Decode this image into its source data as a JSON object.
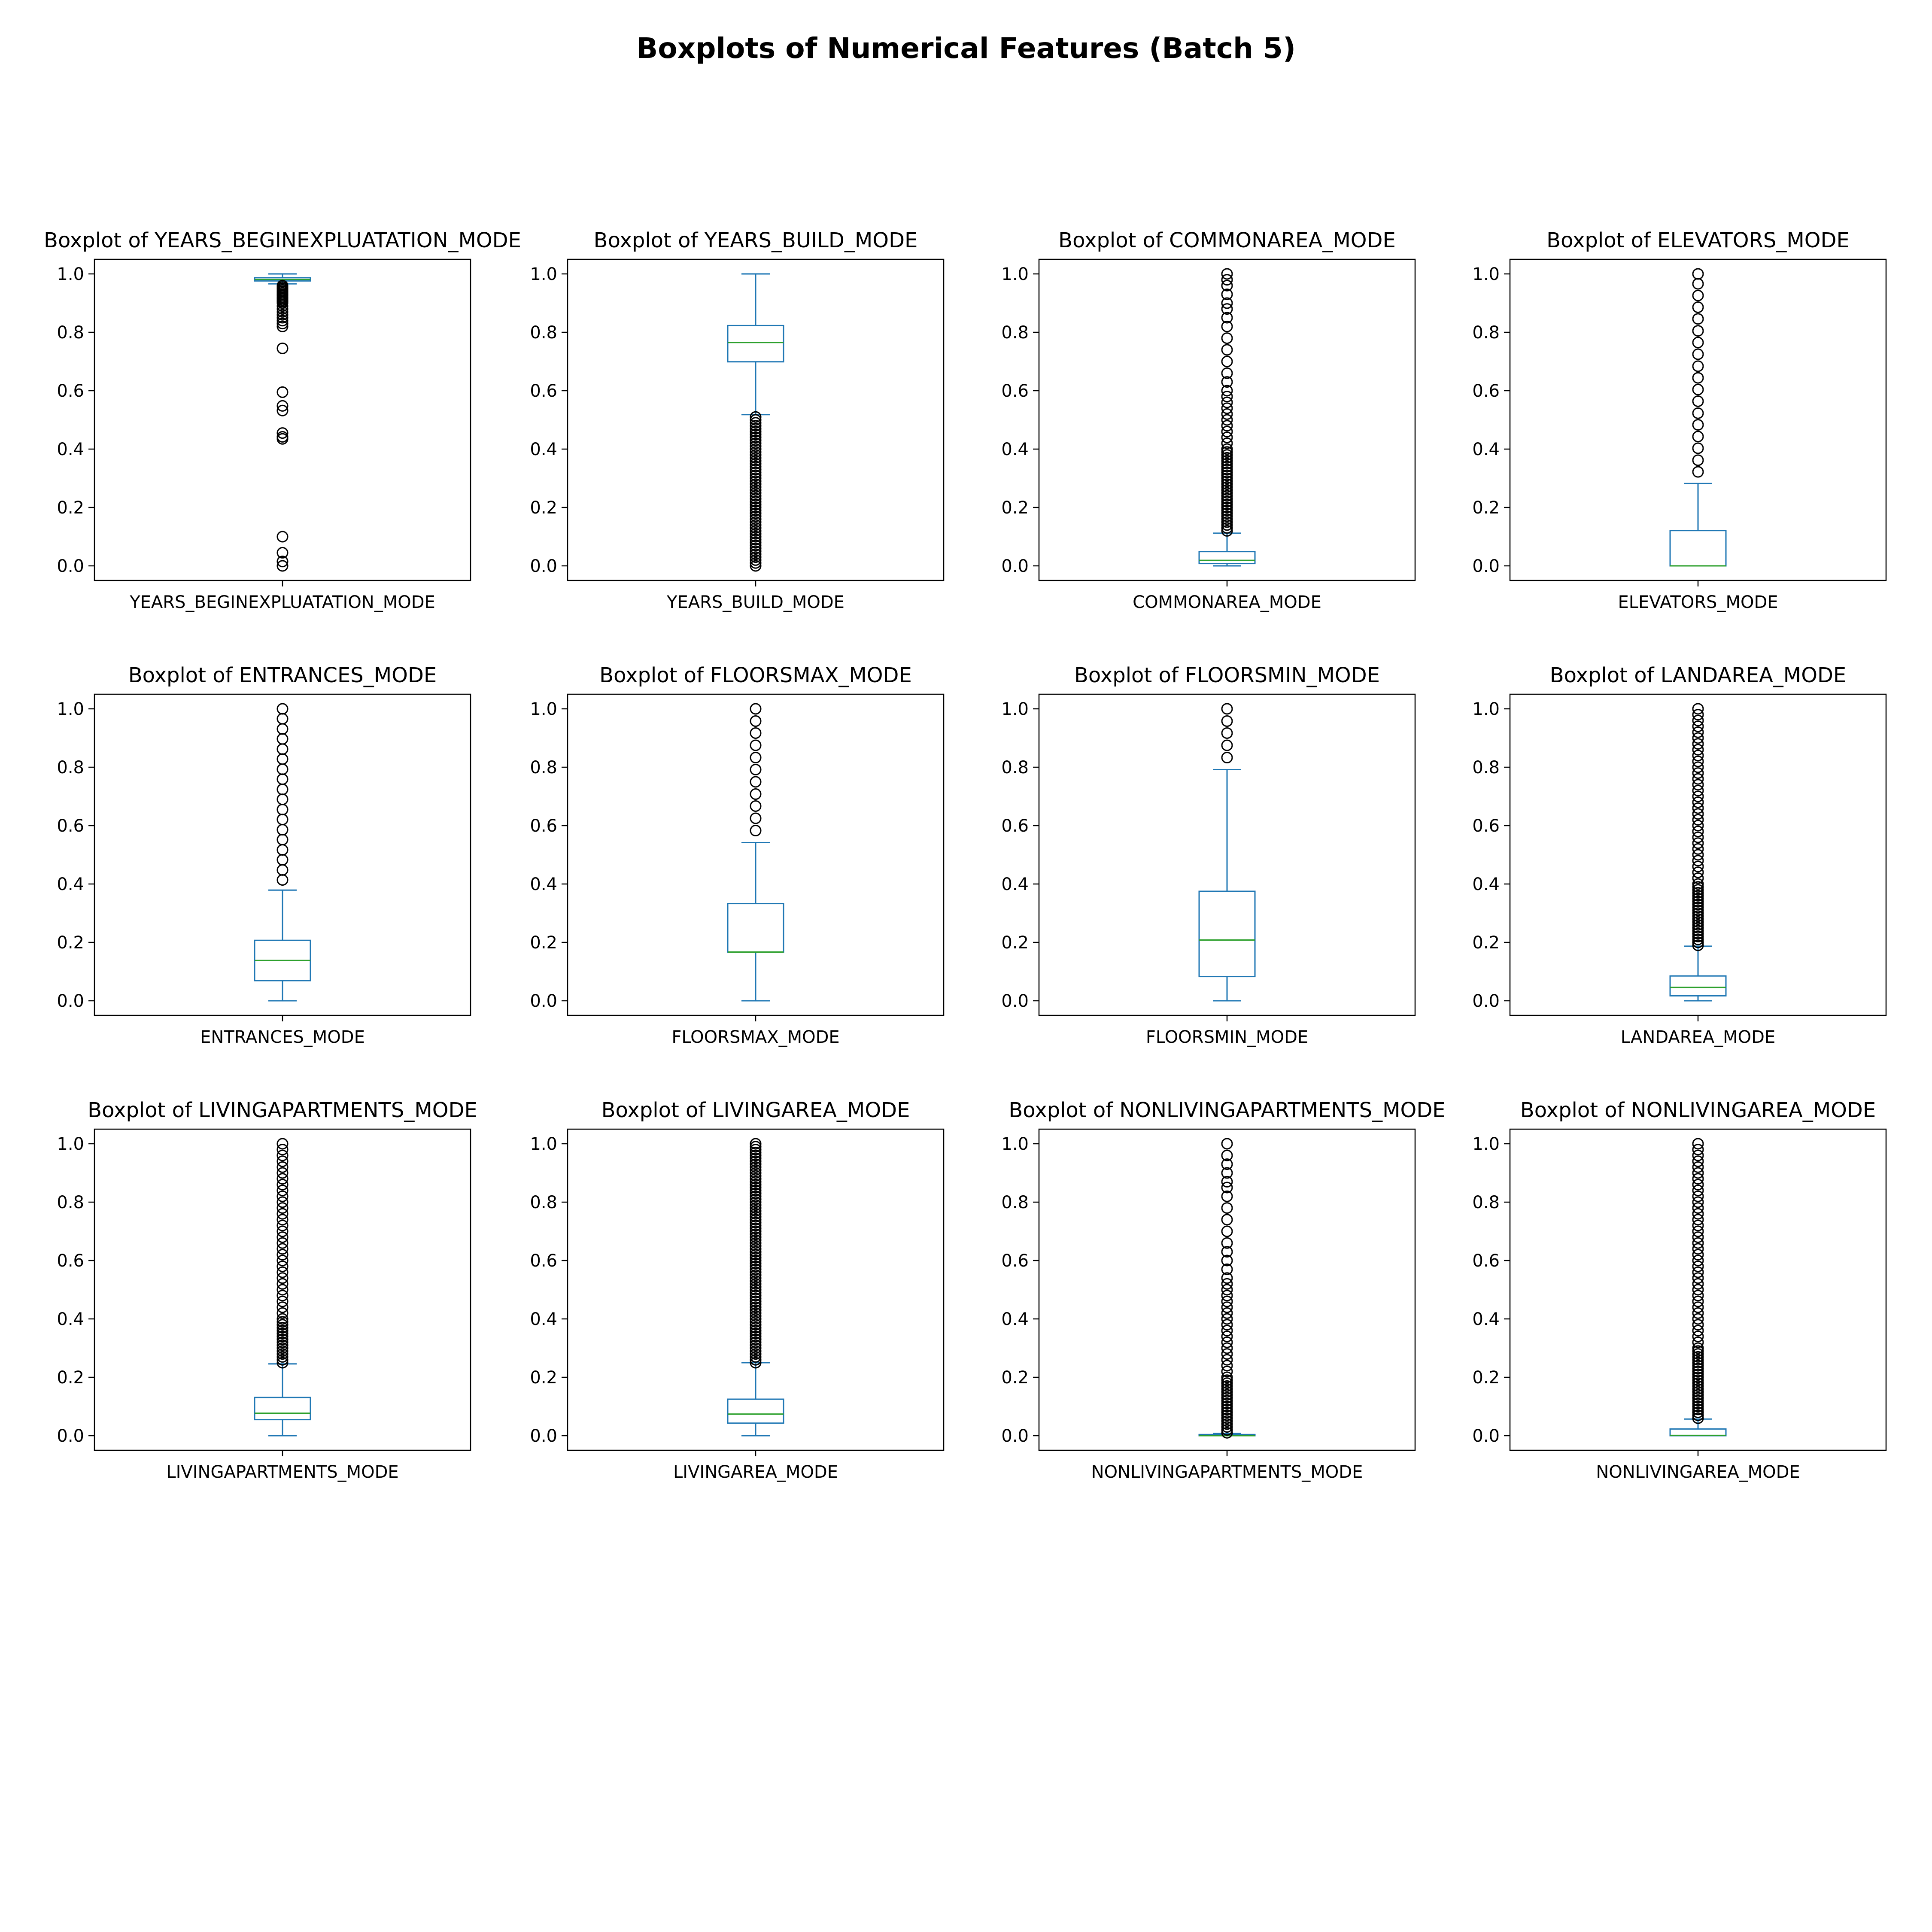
{
  "figure": {
    "title": "Boxplots of Numerical Features (Batch 5)"
  },
  "colors": {
    "box": "#1f77b4",
    "median": "#2ca02c",
    "flier_edge": "#000000",
    "axes": "#000000",
    "background": "#ffffff"
  },
  "chart_data": [
    {
      "type": "boxplot",
      "title": "Boxplot of YEARS_BEGINEXPLUATATION_MODE",
      "category": "YEARS_BEGINEXPLUATATION_MODE",
      "ylim": [
        -0.05,
        1.05
      ],
      "yticks": [
        0.0,
        0.2,
        0.4,
        0.6,
        0.8,
        1.0
      ],
      "whisker_low": 0.966,
      "q1": 0.976,
      "median": 0.981,
      "q3": 0.987,
      "whisker_high": 1.0,
      "outliers": [
        0.96,
        0.955,
        0.95,
        0.945,
        0.94,
        0.935,
        0.93,
        0.925,
        0.92,
        0.915,
        0.91,
        0.905,
        0.9,
        0.89,
        0.88,
        0.87,
        0.86,
        0.85,
        0.84,
        0.83,
        0.82,
        0.745,
        0.595,
        0.548,
        0.532,
        0.455,
        0.442,
        0.435,
        0.1,
        0.045,
        0.015,
        0.0
      ]
    },
    {
      "type": "boxplot",
      "title": "Boxplot of YEARS_BUILD_MODE",
      "category": "YEARS_BUILD_MODE",
      "ylim": [
        -0.05,
        1.05
      ],
      "yticks": [
        0.0,
        0.2,
        0.4,
        0.6,
        0.8,
        1.0
      ],
      "whisker_low": 0.518,
      "q1": 0.699,
      "median": 0.765,
      "q3": 0.823,
      "whisker_high": 1.0,
      "outliers": [
        0.51,
        0.5,
        0.49,
        0.48,
        0.47,
        0.46,
        0.45,
        0.44,
        0.43,
        0.42,
        0.41,
        0.4,
        0.39,
        0.38,
        0.37,
        0.36,
        0.35,
        0.34,
        0.33,
        0.32,
        0.31,
        0.3,
        0.29,
        0.28,
        0.27,
        0.26,
        0.25,
        0.24,
        0.23,
        0.22,
        0.21,
        0.2,
        0.19,
        0.18,
        0.17,
        0.16,
        0.15,
        0.14,
        0.13,
        0.12,
        0.11,
        0.1,
        0.09,
        0.08,
        0.07,
        0.06,
        0.05,
        0.04,
        0.03,
        0.02,
        0.01,
        0.0
      ]
    },
    {
      "type": "boxplot",
      "title": "Boxplot of COMMONAREA_MODE",
      "category": "COMMONAREA_MODE",
      "ylim": [
        -0.05,
        1.05
      ],
      "yticks": [
        0.0,
        0.2,
        0.4,
        0.6,
        0.8,
        1.0
      ],
      "whisker_low": 0.0,
      "q1": 0.008,
      "median": 0.019,
      "q3": 0.049,
      "whisker_high": 0.112,
      "outliers": [
        0.12,
        0.13,
        0.14,
        0.15,
        0.16,
        0.17,
        0.18,
        0.19,
        0.2,
        0.21,
        0.22,
        0.23,
        0.24,
        0.25,
        0.26,
        0.27,
        0.28,
        0.29,
        0.3,
        0.31,
        0.32,
        0.33,
        0.34,
        0.35,
        0.36,
        0.37,
        0.38,
        0.39,
        0.4,
        0.42,
        0.44,
        0.46,
        0.48,
        0.5,
        0.52,
        0.54,
        0.56,
        0.58,
        0.6,
        0.63,
        0.66,
        0.7,
        0.74,
        0.78,
        0.82,
        0.85,
        0.88,
        0.9,
        0.93,
        0.96,
        0.98,
        1.0
      ]
    },
    {
      "type": "boxplot",
      "title": "Boxplot of ELEVATORS_MODE",
      "category": "ELEVATORS_MODE",
      "ylim": [
        -0.05,
        1.05
      ],
      "yticks": [
        0.0,
        0.2,
        0.4,
        0.6,
        0.8,
        1.0
      ],
      "whisker_low": 0.0,
      "q1": 0.0,
      "median": 0.0,
      "q3": 0.121,
      "whisker_high": 0.282,
      "outliers": [
        0.322,
        0.362,
        0.403,
        0.443,
        0.483,
        0.523,
        0.564,
        0.604,
        0.644,
        0.684,
        0.725,
        0.765,
        0.805,
        0.846,
        0.886,
        0.926,
        0.966,
        1.0
      ]
    },
    {
      "type": "boxplot",
      "title": "Boxplot of ENTRANCES_MODE",
      "category": "ENTRANCES_MODE",
      "ylim": [
        -0.05,
        1.05
      ],
      "yticks": [
        0.0,
        0.2,
        0.4,
        0.6,
        0.8,
        1.0
      ],
      "whisker_low": 0.0,
      "q1": 0.069,
      "median": 0.138,
      "q3": 0.207,
      "whisker_high": 0.379,
      "outliers": [
        0.414,
        0.448,
        0.483,
        0.517,
        0.552,
        0.586,
        0.621,
        0.655,
        0.69,
        0.724,
        0.759,
        0.793,
        0.828,
        0.862,
        0.897,
        0.931,
        0.966,
        1.0
      ]
    },
    {
      "type": "boxplot",
      "title": "Boxplot of FLOORSMAX_MODE",
      "category": "FLOORSMAX_MODE",
      "ylim": [
        -0.05,
        1.05
      ],
      "yticks": [
        0.0,
        0.2,
        0.4,
        0.6,
        0.8,
        1.0
      ],
      "whisker_low": 0.0,
      "q1": 0.167,
      "median": 0.167,
      "q3": 0.333,
      "whisker_high": 0.542,
      "outliers": [
        0.583,
        0.625,
        0.667,
        0.708,
        0.75,
        0.792,
        0.833,
        0.875,
        0.917,
        0.958,
        1.0
      ]
    },
    {
      "type": "boxplot",
      "title": "Boxplot of FLOORSMIN_MODE",
      "category": "FLOORSMIN_MODE",
      "ylim": [
        -0.05,
        1.05
      ],
      "yticks": [
        0.0,
        0.2,
        0.4,
        0.6,
        0.8,
        1.0
      ],
      "whisker_low": 0.0,
      "q1": 0.083,
      "median": 0.208,
      "q3": 0.375,
      "whisker_high": 0.792,
      "outliers": [
        0.833,
        0.875,
        0.917,
        0.958,
        1.0
      ]
    },
    {
      "type": "boxplot",
      "title": "Boxplot of LANDAREA_MODE",
      "category": "LANDAREA_MODE",
      "ylim": [
        -0.05,
        1.05
      ],
      "yticks": [
        0.0,
        0.2,
        0.4,
        0.6,
        0.8,
        1.0
      ],
      "whisker_low": 0.0,
      "q1": 0.017,
      "median": 0.046,
      "q3": 0.085,
      "whisker_high": 0.187,
      "outliers": [
        0.19,
        0.2,
        0.21,
        0.22,
        0.23,
        0.24,
        0.25,
        0.26,
        0.27,
        0.28,
        0.29,
        0.3,
        0.31,
        0.32,
        0.33,
        0.34,
        0.35,
        0.36,
        0.37,
        0.38,
        0.39,
        0.4,
        0.42,
        0.44,
        0.46,
        0.48,
        0.5,
        0.52,
        0.54,
        0.56,
        0.58,
        0.6,
        0.62,
        0.64,
        0.66,
        0.68,
        0.7,
        0.72,
        0.74,
        0.76,
        0.78,
        0.8,
        0.82,
        0.84,
        0.86,
        0.88,
        0.9,
        0.92,
        0.94,
        0.96,
        0.98,
        1.0
      ]
    },
    {
      "type": "boxplot",
      "title": "Boxplot of LIVINGAPARTMENTS_MODE",
      "category": "LIVINGAPARTMENTS_MODE",
      "ylim": [
        -0.05,
        1.05
      ],
      "yticks": [
        0.0,
        0.2,
        0.4,
        0.6,
        0.8,
        1.0
      ],
      "whisker_low": 0.0,
      "q1": 0.055,
      "median": 0.077,
      "q3": 0.131,
      "whisker_high": 0.246,
      "outliers": [
        0.25,
        0.26,
        0.27,
        0.28,
        0.29,
        0.3,
        0.31,
        0.32,
        0.33,
        0.34,
        0.35,
        0.36,
        0.37,
        0.38,
        0.39,
        0.4,
        0.42,
        0.44,
        0.46,
        0.48,
        0.5,
        0.52,
        0.54,
        0.56,
        0.58,
        0.6,
        0.62,
        0.64,
        0.66,
        0.68,
        0.7,
        0.72,
        0.74,
        0.76,
        0.78,
        0.8,
        0.82,
        0.84,
        0.86,
        0.88,
        0.9,
        0.92,
        0.94,
        0.96,
        0.98,
        1.0
      ]
    },
    {
      "type": "boxplot",
      "title": "Boxplot of LIVINGAREA_MODE",
      "category": "LIVINGAREA_MODE",
      "ylim": [
        -0.05,
        1.05
      ],
      "yticks": [
        0.0,
        0.2,
        0.4,
        0.6,
        0.8,
        1.0
      ],
      "whisker_low": 0.0,
      "q1": 0.043,
      "median": 0.074,
      "q3": 0.125,
      "whisker_high": 0.25,
      "outliers": [
        0.25,
        0.26,
        0.27,
        0.28,
        0.29,
        0.3,
        0.31,
        0.32,
        0.33,
        0.34,
        0.35,
        0.36,
        0.37,
        0.38,
        0.39,
        0.4,
        0.41,
        0.42,
        0.43,
        0.44,
        0.45,
        0.46,
        0.47,
        0.48,
        0.49,
        0.5,
        0.51,
        0.52,
        0.53,
        0.54,
        0.55,
        0.56,
        0.57,
        0.58,
        0.59,
        0.6,
        0.61,
        0.62,
        0.63,
        0.64,
        0.65,
        0.66,
        0.67,
        0.68,
        0.69,
        0.7,
        0.71,
        0.72,
        0.73,
        0.74,
        0.75,
        0.76,
        0.77,
        0.78,
        0.79,
        0.8,
        0.81,
        0.82,
        0.83,
        0.84,
        0.85,
        0.86,
        0.87,
        0.88,
        0.89,
        0.9,
        0.91,
        0.92,
        0.93,
        0.94,
        0.95,
        0.96,
        0.97,
        0.98,
        0.99,
        1.0
      ]
    },
    {
      "type": "boxplot",
      "title": "Boxplot of NONLIVINGAPARTMENTS_MODE",
      "category": "NONLIVINGAPARTMENTS_MODE",
      "ylim": [
        -0.05,
        1.05
      ],
      "yticks": [
        0.0,
        0.2,
        0.4,
        0.6,
        0.8,
        1.0
      ],
      "whisker_low": 0.0,
      "q1": 0.0,
      "median": 0.0,
      "q3": 0.004,
      "whisker_high": 0.008,
      "outliers": [
        0.01,
        0.02,
        0.03,
        0.04,
        0.05,
        0.06,
        0.07,
        0.08,
        0.09,
        0.1,
        0.11,
        0.12,
        0.13,
        0.14,
        0.15,
        0.16,
        0.17,
        0.18,
        0.19,
        0.2,
        0.22,
        0.24,
        0.26,
        0.28,
        0.3,
        0.32,
        0.34,
        0.36,
        0.38,
        0.4,
        0.42,
        0.44,
        0.46,
        0.48,
        0.5,
        0.52,
        0.54,
        0.57,
        0.6,
        0.63,
        0.66,
        0.7,
        0.74,
        0.78,
        0.82,
        0.85,
        0.87,
        0.9,
        0.93,
        0.96,
        1.0
      ]
    },
    {
      "type": "boxplot",
      "title": "Boxplot of NONLIVINGAREA_MODE",
      "category": "NONLIVINGAREA_MODE",
      "ylim": [
        -0.05,
        1.05
      ],
      "yticks": [
        0.0,
        0.2,
        0.4,
        0.6,
        0.8,
        1.0
      ],
      "whisker_low": 0.0,
      "q1": 0.0,
      "median": 0.001,
      "q3": 0.023,
      "whisker_high": 0.057,
      "outliers": [
        0.06,
        0.07,
        0.08,
        0.09,
        0.1,
        0.11,
        0.12,
        0.13,
        0.14,
        0.15,
        0.16,
        0.17,
        0.18,
        0.19,
        0.2,
        0.21,
        0.22,
        0.23,
        0.24,
        0.25,
        0.26,
        0.27,
        0.28,
        0.29,
        0.3,
        0.32,
        0.34,
        0.36,
        0.38,
        0.4,
        0.42,
        0.44,
        0.46,
        0.48,
        0.5,
        0.52,
        0.54,
        0.56,
        0.58,
        0.6,
        0.62,
        0.64,
        0.66,
        0.68,
        0.7,
        0.72,
        0.74,
        0.76,
        0.78,
        0.8,
        0.82,
        0.84,
        0.86,
        0.88,
        0.9,
        0.92,
        0.94,
        0.96,
        0.98,
        1.0
      ]
    }
  ]
}
